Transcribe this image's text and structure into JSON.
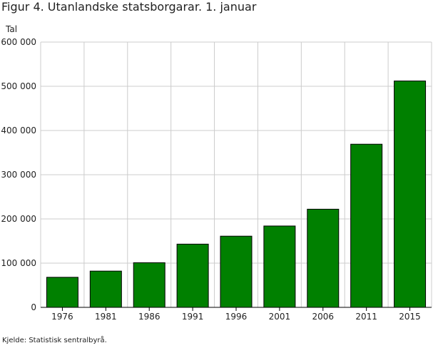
{
  "figure": {
    "title": "Figur 4. Utanlandske statsborgarar. 1. januar",
    "source": "Kjelde: Statistisk sentralbyrå."
  },
  "colors": {
    "bar": "#008000",
    "bar_stroke": "#000000",
    "grid": "#cccccc",
    "axis": "#000000"
  },
  "chart_data": {
    "type": "bar",
    "title": "Figur 4. Utanlandske statsborgarar. 1. januar",
    "xlabel": "",
    "ylabel": "Tal",
    "categories": [
      "1976",
      "1981",
      "1986",
      "1991",
      "1996",
      "2001",
      "2006",
      "2011",
      "2015"
    ],
    "values": [
      68000,
      82000,
      101000,
      143000,
      161000,
      184000,
      222000,
      369000,
      512000
    ],
    "ylim": [
      0,
      600000
    ],
    "yticks": [
      0,
      100000,
      200000,
      300000,
      400000,
      500000,
      600000
    ],
    "ytick_labels": [
      "0",
      "100 000",
      "200 000",
      "300 000",
      "400 000",
      "500 000",
      "600 000"
    ],
    "grid": true,
    "legend": "none"
  }
}
